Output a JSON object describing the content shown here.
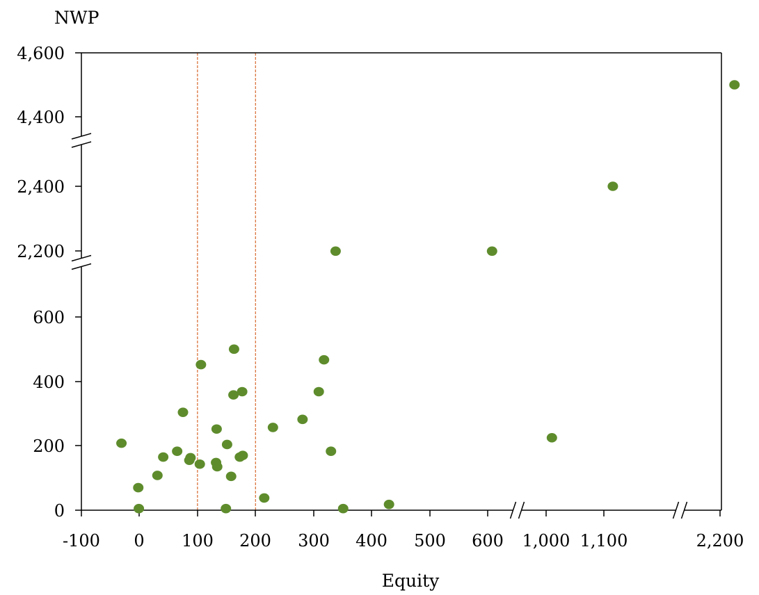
{
  "chart_data": {
    "type": "scatter",
    "ylabel": "NWP",
    "xlabel": "Equity",
    "x_ticks": [
      "-100",
      "0",
      "100",
      "200",
      "300",
      "400",
      "500",
      "600",
      "1,000",
      "1,100",
      "2,200"
    ],
    "y_ticks": [
      "0",
      "200",
      "400",
      "600",
      "2,200",
      "2,400",
      "4,400",
      "4,600"
    ],
    "axis_breaks": {
      "x": [
        "600-1,000",
        "1,100-2,200"
      ],
      "y": [
        "600-2,200",
        "2,400-4,400"
      ]
    },
    "reference_lines_x": [
      100,
      200
    ],
    "reference_line_color": "#d8692e",
    "point_color": "#5e8c2c",
    "grid": false,
    "points": [
      {
        "x": -31,
        "y": 208
      },
      {
        "x": -2,
        "y": 70
      },
      {
        "x": -1,
        "y": 5
      },
      {
        "x": 31,
        "y": 108
      },
      {
        "x": 41,
        "y": 165
      },
      {
        "x": 65,
        "y": 183
      },
      {
        "x": 75,
        "y": 304
      },
      {
        "x": 86,
        "y": 155
      },
      {
        "x": 88,
        "y": 163
      },
      {
        "x": 104,
        "y": 143
      },
      {
        "x": 106,
        "y": 452
      },
      {
        "x": 132,
        "y": 148
      },
      {
        "x": 133,
        "y": 252
      },
      {
        "x": 134,
        "y": 135
      },
      {
        "x": 149,
        "y": 5
      },
      {
        "x": 151,
        "y": 204
      },
      {
        "x": 158,
        "y": 105
      },
      {
        "x": 162,
        "y": 358
      },
      {
        "x": 163,
        "y": 500
      },
      {
        "x": 173,
        "y": 165
      },
      {
        "x": 177,
        "y": 368
      },
      {
        "x": 178,
        "y": 170
      },
      {
        "x": 215,
        "y": 38
      },
      {
        "x": 230,
        "y": 257
      },
      {
        "x": 281,
        "y": 282
      },
      {
        "x": 309,
        "y": 368
      },
      {
        "x": 318,
        "y": 467
      },
      {
        "x": 330,
        "y": 183
      },
      {
        "x": 338,
        "y": 2195
      },
      {
        "x": 351,
        "y": 5
      },
      {
        "x": 430,
        "y": 18
      },
      {
        "x": 630,
        "y": 2195
      },
      {
        "x": 1010,
        "y": 225
      },
      {
        "x": 1185,
        "y": 2400
      },
      {
        "x": 2225,
        "y": 4500
      }
    ]
  }
}
